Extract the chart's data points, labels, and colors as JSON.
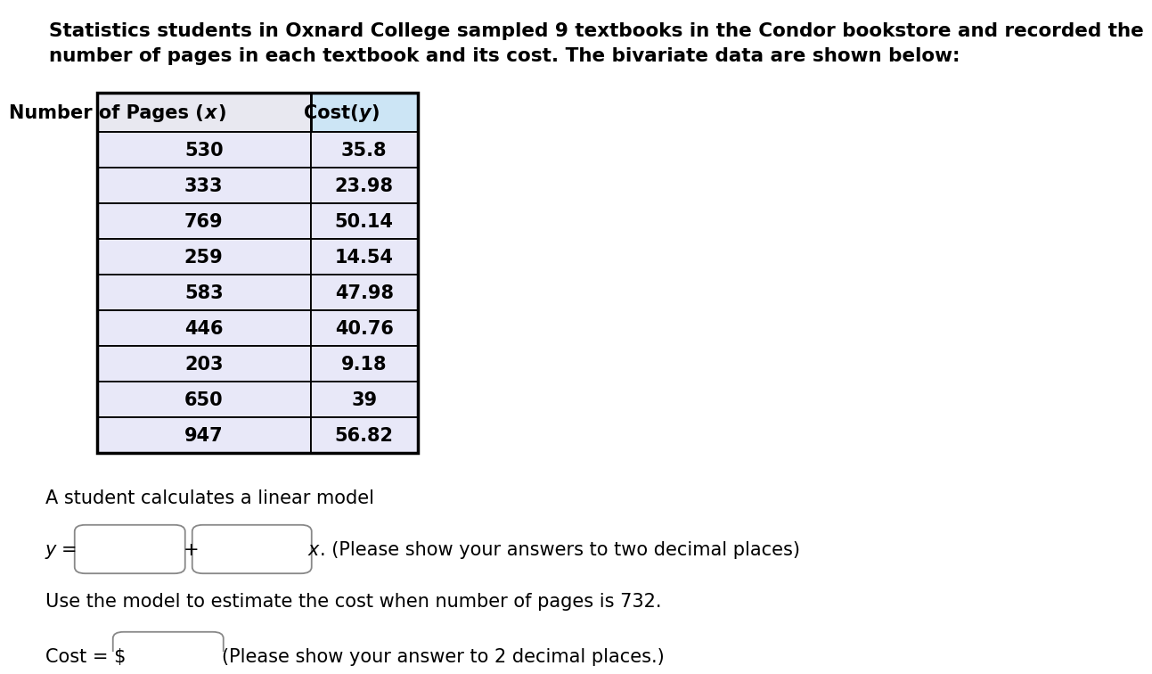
{
  "title_text": "Statistics students in Oxnard College sampled 9 textbooks in the Condor bookstore and recorded the\nnumber of pages in each textbook and its cost. The bivariate data are shown below:",
  "pages": [
    530,
    333,
    769,
    259,
    583,
    446,
    203,
    650,
    947
  ],
  "costs": [
    "35.8",
    "23.98",
    "50.14",
    "14.54",
    "47.98",
    "40.76",
    "9.18",
    "39",
    "56.82"
  ],
  "linear_model_text": "A student calculates a linear model",
  "use_model_text": "Use the model to estimate the cost when number of pages is 732.",
  "cost_label": "Cost = $",
  "cost_answer_hint": "(Please show your answer to 2 decimal places.)",
  "x_suffix": ". (Please show your answers to two decimal places)",
  "header_bg_col1": "#e8e8f0",
  "header_bg_col2": "#cce5f5",
  "row_bg": "#e8e8f8",
  "border_color": "#000000",
  "font_size_title": 15.5,
  "font_size_table": 15,
  "font_size_text": 15
}
